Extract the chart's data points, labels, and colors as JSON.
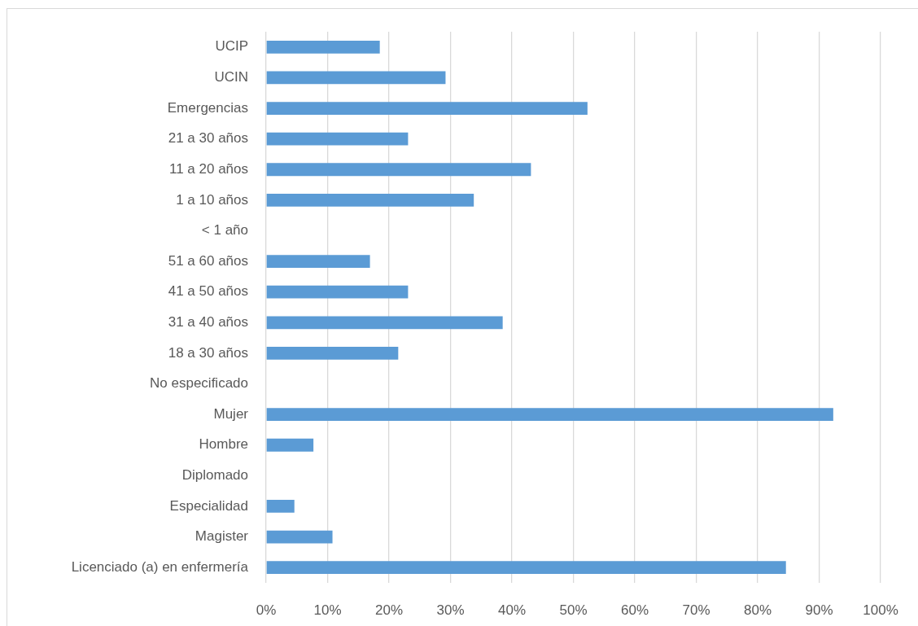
{
  "chart_data": {
    "type": "bar",
    "orientation": "horizontal",
    "categories": [
      "UCIP",
      "UCIN",
      "Emergencias",
      "21 a 30 años",
      "11 a 20 años",
      "1 a 10 años",
      "< 1 año",
      "51 a 60 años",
      "41 a 50 años",
      "31 a 40 años",
      "18 a 30 años",
      "No especificado",
      "Mujer",
      "Hombre",
      "Diplomado",
      "Especialidad",
      "Magister",
      "Licenciado (a) en enfermería"
    ],
    "values": [
      18.5,
      29.2,
      52.3,
      23.1,
      43.1,
      33.8,
      0,
      16.9,
      23.1,
      38.5,
      21.5,
      0,
      92.3,
      7.7,
      0,
      4.6,
      10.8,
      84.6
    ],
    "color": "#5b9bd5",
    "xlim": [
      0,
      100
    ],
    "xticks": [
      {
        "value": 0,
        "label": "0%"
      },
      {
        "value": 10,
        "label": "10%"
      },
      {
        "value": 20,
        "label": "20%"
      },
      {
        "value": 30,
        "label": "30%"
      },
      {
        "value": 40,
        "label": "40%"
      },
      {
        "value": 50,
        "label": "50%"
      },
      {
        "value": 60,
        "label": "60%"
      },
      {
        "value": 70,
        "label": "70%"
      },
      {
        "value": 80,
        "label": "80%"
      },
      {
        "value": 90,
        "label": "90%"
      },
      {
        "value": 100,
        "label": "100%"
      }
    ],
    "grid": "x"
  }
}
